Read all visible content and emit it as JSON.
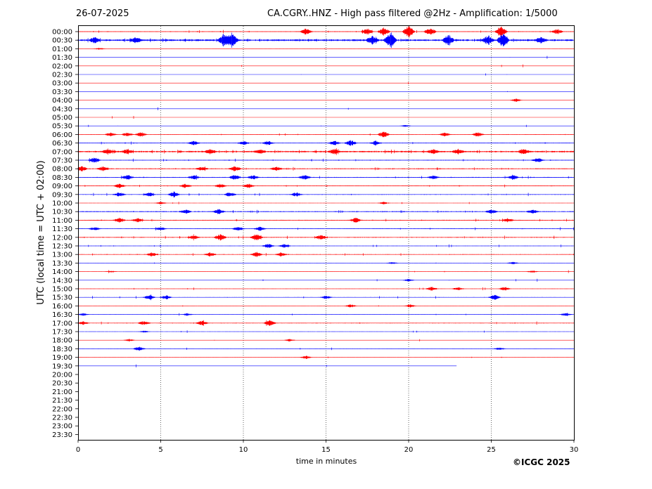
{
  "header": {
    "date": "26-07-2025",
    "station_title": "CA.CGRY..HNZ - High pass filtered @2Hz - Amplification: 1/5000"
  },
  "footer": {
    "copyright": "©ICGC 2025"
  },
  "chart_data": {
    "type": "line",
    "title": "CA.CGRY..HNZ - High pass filtered @2Hz - Amplification: 1/5000",
    "xlabel": "time in minutes",
    "ylabel": "UTC (local time = UTC + 02:00)",
    "xlim": [
      0,
      30
    ],
    "x_ticks": [
      "0",
      "5",
      "10",
      "15",
      "20",
      "25",
      "30"
    ],
    "grid": "vertical dotted lines at 5-minute intervals",
    "colors": {
      "even_trace": "#ff0000",
      "odd_trace": "#0000ff"
    },
    "row_labels": [
      "00:00",
      "00:30",
      "01:00",
      "01:30",
      "02:00",
      "02:30",
      "03:00",
      "03:30",
      "04:00",
      "04:30",
      "05:00",
      "05:30",
      "06:00",
      "06:30",
      "07:00",
      "07:30",
      "08:00",
      "08:30",
      "09:00",
      "09:30",
      "10:00",
      "10:30",
      "11:00",
      "11:30",
      "12:00",
      "12:30",
      "13:00",
      "13:30",
      "14:00",
      "14:30",
      "15:00",
      "15:30",
      "16:00",
      "16:30",
      "17:00",
      "17:30",
      "18:00",
      "18:30",
      "19:00",
      "19:30",
      "20:00",
      "20:30",
      "21:00",
      "21:30",
      "22:00",
      "22:30",
      "23:00",
      "23:30"
    ],
    "trace_activity": [
      {
        "label": "00:00",
        "level": 0.5,
        "events": [
          [
            13.8,
            1.6
          ],
          [
            17.5,
            1.5
          ],
          [
            18.5,
            2
          ],
          [
            20.0,
            3
          ],
          [
            21.3,
            2
          ],
          [
            25.6,
            2.5
          ],
          [
            29,
            1.2
          ]
        ]
      },
      {
        "label": "00:30",
        "level": 1.2,
        "events": [
          [
            1.0,
            1.3
          ],
          [
            3.5,
            1.4
          ],
          [
            8.8,
            2.8
          ],
          [
            9.3,
            3.5
          ],
          [
            17.8,
            2
          ],
          [
            18.9,
            3.5
          ],
          [
            22.4,
            2.5
          ],
          [
            24.8,
            2.2
          ],
          [
            25.7,
            3.2
          ],
          [
            28,
            1.5
          ]
        ]
      },
      {
        "label": "01:00",
        "level": 0.1,
        "events": [
          [
            1.3,
            0.5
          ]
        ]
      },
      {
        "label": "01:30",
        "level": 0.05,
        "events": []
      },
      {
        "label": "02:00",
        "level": 0.05,
        "events": []
      },
      {
        "label": "02:30",
        "level": 0.05,
        "events": []
      },
      {
        "label": "03:00",
        "level": 0.05,
        "events": []
      },
      {
        "label": "03:30",
        "level": 0.05,
        "events": []
      },
      {
        "label": "04:00",
        "level": 0.05,
        "events": [
          [
            26.5,
            0.8
          ]
        ]
      },
      {
        "label": "04:30",
        "level": 0.05,
        "events": []
      },
      {
        "label": "05:00",
        "level": 0.05,
        "events": []
      },
      {
        "label": "05:30",
        "level": 0.1,
        "events": [
          [
            19.8,
            0.5
          ]
        ]
      },
      {
        "label": "06:00",
        "level": 0.3,
        "events": [
          [
            2.0,
            1
          ],
          [
            3,
            1
          ],
          [
            3.8,
            1.2
          ],
          [
            18.5,
            1.6
          ],
          [
            22.2,
            1
          ],
          [
            24.2,
            1.2
          ]
        ]
      },
      {
        "label": "06:30",
        "level": 0.4,
        "events": [
          [
            7,
            1
          ],
          [
            10,
            1
          ],
          [
            11.5,
            1
          ],
          [
            15.5,
            1.2
          ],
          [
            16.5,
            1.4
          ],
          [
            18,
            1
          ]
        ]
      },
      {
        "label": "07:00",
        "level": 1.0,
        "events": [
          [
            1.8,
            1.2
          ],
          [
            3.0,
            1
          ],
          [
            8.0,
            1.2
          ],
          [
            11,
            1
          ],
          [
            15.5,
            1.2
          ],
          [
            21.5,
            1
          ],
          [
            23,
            1
          ],
          [
            27,
            1.2
          ]
        ]
      },
      {
        "label": "07:30",
        "level": 0.5,
        "events": [
          [
            1,
            1.2
          ],
          [
            27.8,
            1
          ]
        ]
      },
      {
        "label": "08:00",
        "level": 0.6,
        "events": [
          [
            0.2,
            1.2
          ],
          [
            1.5,
            1
          ],
          [
            7.5,
            1
          ],
          [
            9.5,
            1.2
          ],
          [
            12,
            1
          ]
        ]
      },
      {
        "label": "08:30",
        "level": 0.5,
        "events": [
          [
            3,
            1.2
          ],
          [
            7,
            1
          ],
          [
            9.5,
            1.2
          ],
          [
            10.6,
            1
          ],
          [
            13.7,
            1.2
          ],
          [
            21.5,
            1
          ],
          [
            26.3,
            1.2
          ]
        ]
      },
      {
        "label": "09:00",
        "level": 0.4,
        "events": [
          [
            2.5,
            1
          ],
          [
            6.5,
            1
          ],
          [
            8.6,
            1
          ],
          [
            10.3,
            1
          ]
        ]
      },
      {
        "label": "09:30",
        "level": 0.4,
        "events": [
          [
            2.5,
            1
          ],
          [
            4.3,
            1
          ],
          [
            5.8,
            1.4
          ],
          [
            9.2,
            1.2
          ],
          [
            13.2,
            1
          ]
        ]
      },
      {
        "label": "10:00",
        "level": 0.1,
        "events": [
          [
            5,
            0.6
          ],
          [
            18.5,
            0.6
          ]
        ]
      },
      {
        "label": "10:30",
        "level": 0.6,
        "events": [
          [
            6.5,
            1
          ],
          [
            8.5,
            1.2
          ],
          [
            25,
            1
          ],
          [
            27.5,
            1
          ]
        ]
      },
      {
        "label": "11:00",
        "level": 0.5,
        "events": [
          [
            2.5,
            1.2
          ],
          [
            3.6,
            1
          ],
          [
            16.8,
            1.2
          ],
          [
            26,
            1
          ]
        ]
      },
      {
        "label": "11:30",
        "level": 0.4,
        "events": [
          [
            1,
            0.8
          ],
          [
            5,
            0.8
          ],
          [
            9.7,
            1
          ],
          [
            11,
            1
          ]
        ]
      },
      {
        "label": "12:00",
        "level": 0.5,
        "events": [
          [
            7,
            1
          ],
          [
            8.6,
            1.6
          ],
          [
            10.8,
            1.6
          ],
          [
            14.7,
            1.2
          ]
        ]
      },
      {
        "label": "12:30",
        "level": 0.2,
        "events": [
          [
            11.5,
            1.2
          ],
          [
            12.5,
            1
          ]
        ]
      },
      {
        "label": "13:00",
        "level": 0.4,
        "events": [
          [
            4.5,
            1
          ],
          [
            8,
            1
          ],
          [
            10.8,
            1.2
          ],
          [
            12.3,
            1
          ]
        ]
      },
      {
        "label": "13:30",
        "level": 0.1,
        "events": [
          [
            19,
            0.6
          ],
          [
            26.3,
            0.6
          ]
        ]
      },
      {
        "label": "14:00",
        "level": 0.1,
        "events": [
          [
            2,
            0.5
          ],
          [
            27.5,
            0.5
          ]
        ]
      },
      {
        "label": "14:30",
        "level": 0.1,
        "events": [
          [
            20,
            0.6
          ]
        ]
      },
      {
        "label": "15:00",
        "level": 0.2,
        "events": [
          [
            21.4,
            1
          ],
          [
            23,
            0.8
          ],
          [
            25.8,
            1
          ]
        ]
      },
      {
        "label": "15:30",
        "level": 0.3,
        "events": [
          [
            4.3,
            1.2
          ],
          [
            5.3,
            1
          ],
          [
            15,
            0.8
          ],
          [
            25.2,
            1.2
          ]
        ]
      },
      {
        "label": "16:00",
        "level": 0.1,
        "events": [
          [
            16.5,
            0.8
          ],
          [
            20.1,
            0.8
          ]
        ]
      },
      {
        "label": "16:30",
        "level": 0.2,
        "events": [
          [
            0.3,
            0.6
          ],
          [
            6.6,
            0.6
          ],
          [
            29.5,
            0.8
          ]
        ]
      },
      {
        "label": "17:00",
        "level": 0.4,
        "events": [
          [
            0.3,
            0.8
          ],
          [
            4,
            1
          ],
          [
            7.5,
            1.2
          ],
          [
            11.6,
            1.4
          ]
        ]
      },
      {
        "label": "17:30",
        "level": 0.1,
        "events": [
          [
            4,
            0.5
          ]
        ]
      },
      {
        "label": "18:00",
        "level": 0.1,
        "events": [
          [
            3.1,
            0.6
          ],
          [
            12.8,
            0.6
          ]
        ]
      },
      {
        "label": "18:30",
        "level": 0.2,
        "events": [
          [
            3.7,
            1.2
          ],
          [
            25.5,
            0.6
          ]
        ]
      },
      {
        "label": "19:00",
        "level": 0.1,
        "events": [
          [
            13.8,
            0.8
          ]
        ]
      },
      {
        "label": "19:30",
        "level": 0.05,
        "events": [],
        "end": 22.9
      }
    ]
  }
}
